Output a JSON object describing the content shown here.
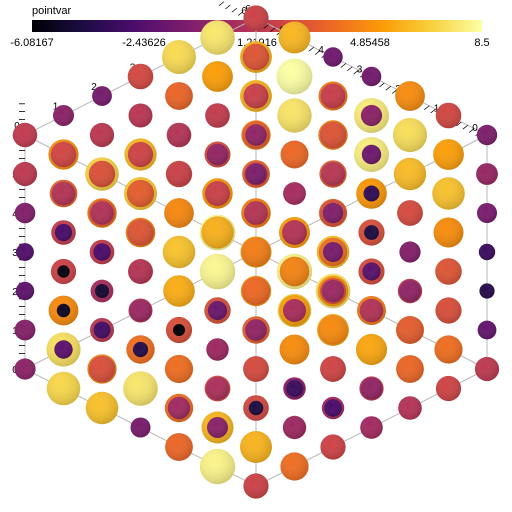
{
  "chart_data": {
    "type": "scatter",
    "title": "",
    "colorbar": {
      "title": "pointvar",
      "min": -6.08167,
      "max": 8.5,
      "ticks": [
        "-6.08167",
        "-2.43626",
        "1.21916",
        "4.85458",
        "8.5"
      ],
      "colormap": [
        "#000004",
        "#1b0c41",
        "#4a0c6b",
        "#781c6d",
        "#a52c60",
        "#cf4446",
        "#ed6925",
        "#fb9b06",
        "#f7d13d",
        "#fcffa4"
      ]
    },
    "axes": {
      "range": [
        0,
        6
      ],
      "x_ticks": [
        "0",
        "1",
        "2",
        "3",
        "4",
        "5",
        "6"
      ],
      "y_ticks": [
        "0",
        "1",
        "2",
        "3",
        "4",
        "5",
        "6"
      ],
      "z_ticks": [
        "0",
        "1",
        "2",
        "3",
        "4",
        "5",
        "6"
      ]
    },
    "glyph": "sphere",
    "grid_points": 7,
    "description_of_values": "pointvar sampled on a 7x7x7 lattice; sphere size scales with value"
  }
}
